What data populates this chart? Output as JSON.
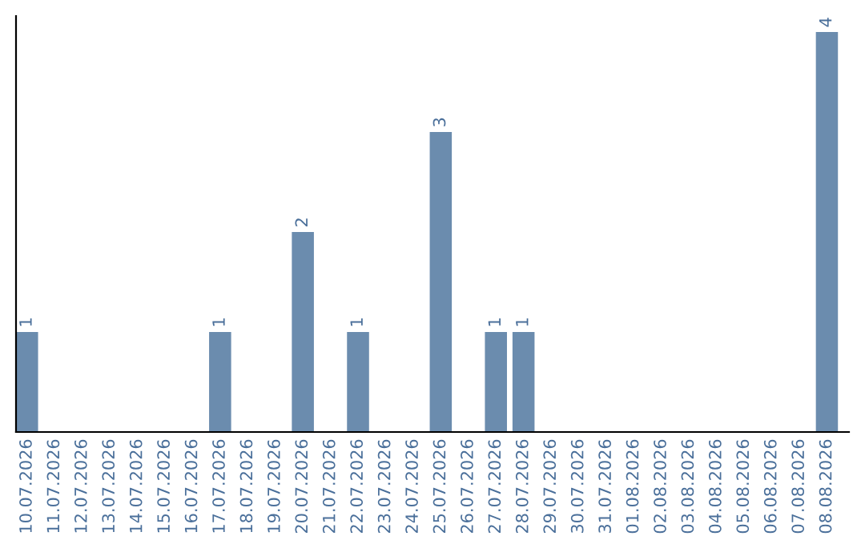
{
  "chart_data": {
    "type": "bar",
    "categories": [
      "10.07.2026",
      "11.07.2026",
      "12.07.2026",
      "13.07.2026",
      "14.07.2026",
      "15.07.2026",
      "16.07.2026",
      "17.07.2026",
      "18.07.2026",
      "19.07.2026",
      "20.07.2026",
      "21.07.2026",
      "22.07.2026",
      "23.07.2026",
      "24.07.2026",
      "25.07.2026",
      "26.07.2026",
      "27.07.2026",
      "28.07.2026",
      "29.07.2026",
      "30.07.2026",
      "31.07.2026",
      "01.08.2026",
      "02.08.2026",
      "03.08.2026",
      "04.08.2026",
      "05.08.2026",
      "06.08.2026",
      "07.08.2026",
      "08.08.2026"
    ],
    "values": [
      1,
      0,
      0,
      0,
      0,
      0,
      0,
      1,
      0,
      0,
      2,
      0,
      1,
      0,
      0,
      3,
      0,
      1,
      1,
      0,
      0,
      0,
      0,
      0,
      0,
      0,
      0,
      0,
      0,
      4
    ],
    "value_labels": [
      "1",
      null,
      null,
      null,
      null,
      null,
      null,
      "1",
      null,
      null,
      "2",
      null,
      "1",
      null,
      null,
      "3",
      null,
      "1",
      "1",
      null,
      null,
      null,
      null,
      null,
      null,
      null,
      null,
      null,
      null,
      "4"
    ],
    "color": "#6b8cae",
    "tick_labels": "x",
    "grid": false,
    "legend": false
  }
}
